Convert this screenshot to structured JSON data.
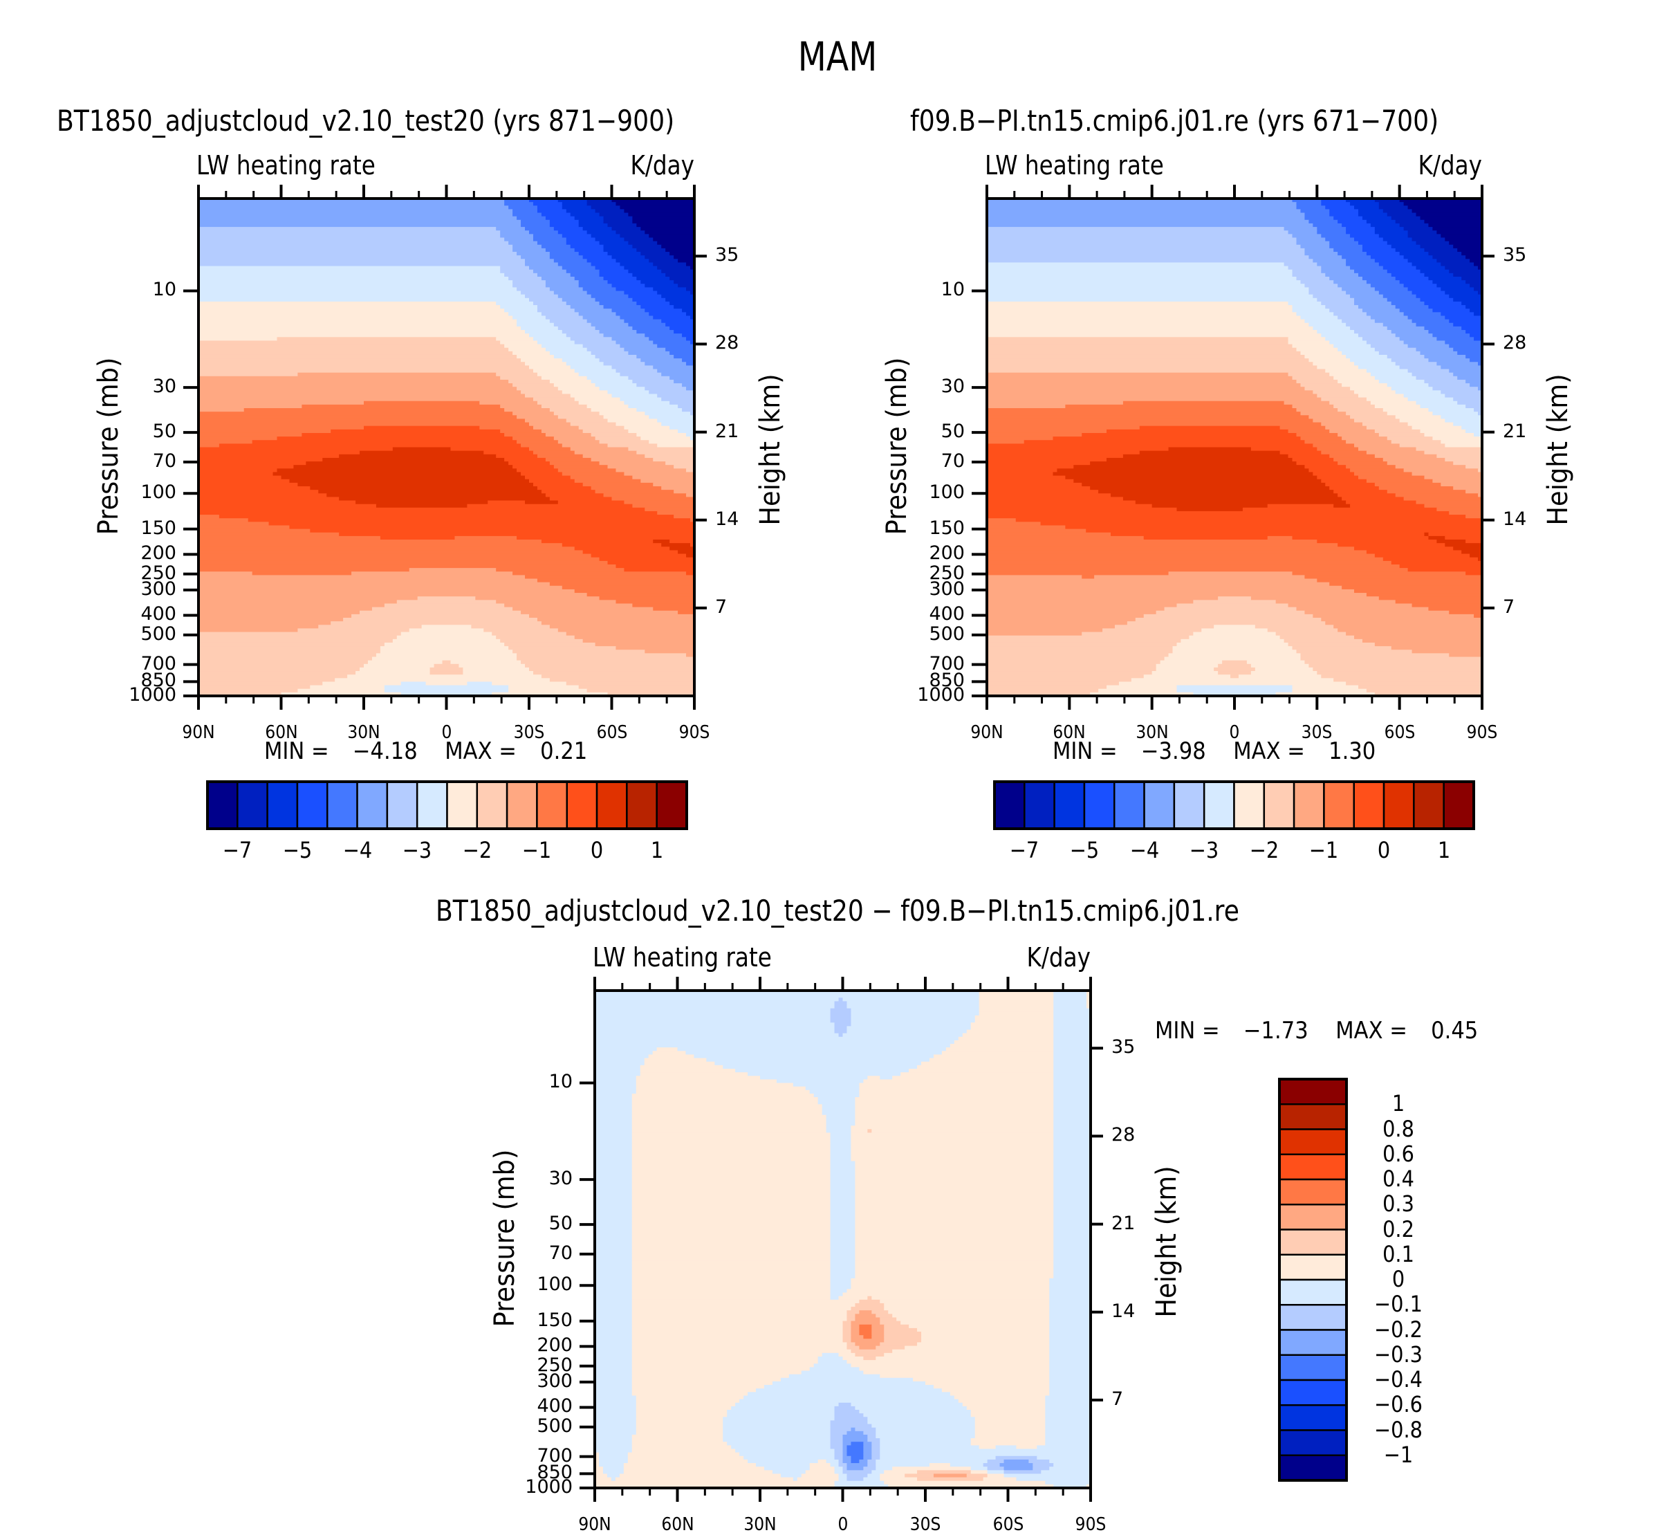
{
  "figure_title": "MAM",
  "chart_data": [
    {
      "type": "heatmap",
      "panel": "top-left",
      "title": "BT1850_adjustcloud_v2.10_test20 (yrs 871−900)",
      "left_string": "LW heating rate",
      "right_string": "K/day",
      "xlabel": "",
      "ylabel": "Pressure (mb)",
      "ylabel_right": "Height (km)",
      "x_ticks": [
        "90N",
        "60N",
        "30N",
        "0",
        "30S",
        "60S",
        "90S"
      ],
      "x_range": [
        90,
        -90
      ],
      "y_ticks": [
        "10",
        "30",
        "50",
        "70",
        "100",
        "150",
        "200",
        "250",
        "300",
        "400",
        "500",
        "700",
        "850",
        "1000"
      ],
      "y_ticks_right": [
        "35",
        "28",
        "21",
        "14",
        "7"
      ],
      "y_range_mb": [
        1000,
        3.5
      ],
      "min_label": "MIN =",
      "min_value": "−4.18",
      "max_label": "MAX =",
      "max_value": "0.21",
      "field_id": "test",
      "colorbar": {
        "orientation": "horizontal",
        "labels": [
          "−7",
          "−5",
          "−4",
          "−3",
          "−2",
          "−1",
          "0",
          "1"
        ],
        "n_boxes": 16
      }
    },
    {
      "type": "heatmap",
      "panel": "top-right",
      "title": "f09.B−PI.tn15.cmip6.j01.re (yrs 671−700)",
      "left_string": "LW heating rate",
      "right_string": "K/day",
      "xlabel": "",
      "ylabel": "Pressure (mb)",
      "ylabel_right": "Height (km)",
      "x_ticks": [
        "90N",
        "60N",
        "30N",
        "0",
        "30S",
        "60S",
        "90S"
      ],
      "x_range": [
        90,
        -90
      ],
      "y_ticks": [
        "10",
        "30",
        "50",
        "70",
        "100",
        "150",
        "200",
        "250",
        "300",
        "400",
        "500",
        "700",
        "850",
        "1000"
      ],
      "y_ticks_right": [
        "35",
        "28",
        "21",
        "14",
        "7"
      ],
      "y_range_mb": [
        1000,
        3.5
      ],
      "min_label": "MIN =",
      "min_value": "−3.98",
      "max_label": "MAX =",
      "max_value": "1.30",
      "field_id": "ctrl",
      "colorbar": {
        "orientation": "horizontal",
        "labels": [
          "−7",
          "−5",
          "−4",
          "−3",
          "−2",
          "−1",
          "0",
          "1"
        ],
        "n_boxes": 16
      }
    },
    {
      "type": "heatmap",
      "panel": "bottom",
      "title": "BT1850_adjustcloud_v2.10_test20 − f09.B−PI.tn15.cmip6.j01.re",
      "left_string": "LW heating rate",
      "right_string": "K/day",
      "xlabel": "",
      "ylabel": "Pressure (mb)",
      "ylabel_right": "Height (km)",
      "x_ticks": [
        "90N",
        "60N",
        "30N",
        "0",
        "30S",
        "60S",
        "90S"
      ],
      "x_range": [
        90,
        -90
      ],
      "y_ticks": [
        "10",
        "30",
        "50",
        "70",
        "100",
        "150",
        "200",
        "250",
        "300",
        "400",
        "500",
        "700",
        "850",
        "1000"
      ],
      "y_ticks_right": [
        "35",
        "28",
        "21",
        "14",
        "7"
      ],
      "y_range_mb": [
        1000,
        3.5
      ],
      "min_label": "MIN =",
      "min_value": "−1.73",
      "max_label": "MAX =",
      "max_value": "0.45",
      "field_id": "diff",
      "colorbar": {
        "orientation": "vertical",
        "labels": [
          "1",
          "0.8",
          "0.6",
          "0.4",
          "0.3",
          "0.2",
          "0.1",
          "0",
          "−0.1",
          "−0.2",
          "−0.3",
          "−0.4",
          "−0.6",
          "−0.8",
          "−1"
        ],
        "n_boxes": 16
      }
    }
  ],
  "palette": [
    "#00008b",
    "#0020c0",
    "#0034e0",
    "#1a50ff",
    "#4478ff",
    "#80a8ff",
    "#b4ccff",
    "#d6eaff",
    "#ffebda",
    "#ffcdb4",
    "#ffa882",
    "#ff7845",
    "#ff501a",
    "#e03200",
    "#b82300",
    "#8b0000"
  ]
}
